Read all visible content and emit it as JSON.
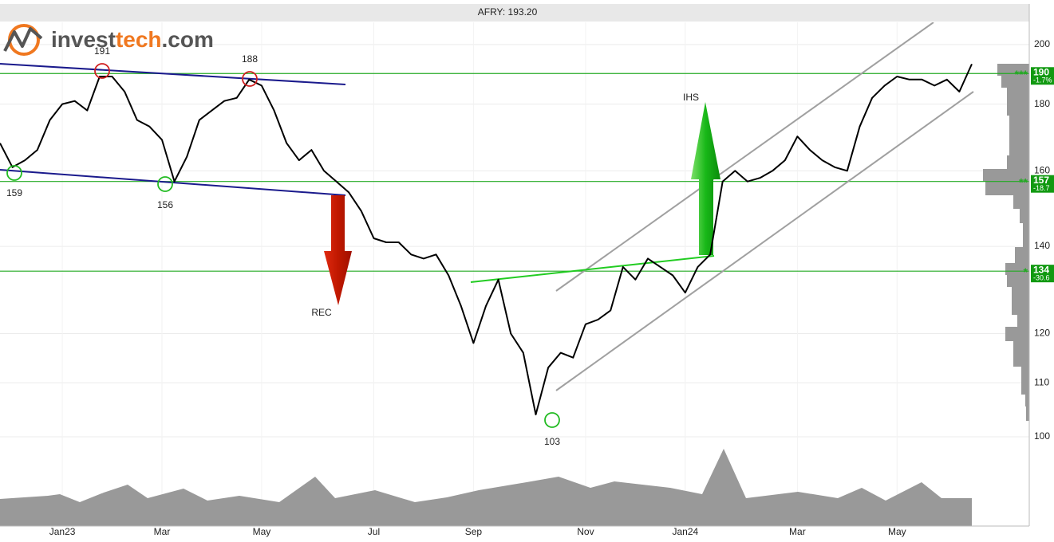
{
  "chart_data": {
    "type": "line",
    "title": "AFRY: 193.20",
    "logo": [
      "invest",
      "tech",
      ".com"
    ],
    "log_scale": true,
    "grid": true,
    "color": "#000000",
    "categories": [
      null,
      null,
      null,
      null,
      null,
      "Jan23",
      null,
      null,
      null,
      null,
      null,
      null,
      null,
      "Mar",
      null,
      null,
      null,
      null,
      null,
      null,
      null,
      "May",
      null,
      null,
      null,
      null,
      null,
      null,
      null,
      null,
      "Jul",
      null,
      null,
      null,
      null,
      null,
      null,
      null,
      "Sep",
      null,
      null,
      null,
      null,
      null,
      null,
      null,
      null,
      "Nov",
      null,
      null,
      null,
      null,
      null,
      null,
      null,
      "Jan24",
      null,
      null,
      null,
      null,
      null,
      null,
      null,
      null,
      "Mar",
      null,
      null,
      null,
      null,
      null,
      null,
      null,
      "May",
      null,
      null,
      null,
      null,
      null,
      null
    ],
    "values": [
      168,
      161,
      163,
      166,
      175,
      180,
      181,
      178,
      189,
      189,
      184,
      175,
      173,
      169,
      157,
      164,
      175,
      178,
      181,
      182,
      188,
      186,
      178,
      168,
      163,
      166,
      160,
      157,
      154,
      149,
      142,
      141,
      141,
      138,
      137,
      138,
      133,
      126,
      118,
      126,
      132,
      120,
      116,
      104,
      113,
      116,
      115,
      122,
      123,
      125,
      135,
      132,
      137,
      135,
      133,
      129,
      135,
      138,
      157,
      160,
      157,
      158,
      160,
      163,
      170,
      166,
      163,
      161,
      160,
      173,
      182,
      186,
      189,
      188,
      188,
      186,
      188,
      184,
      193.2
    ],
    "ylim": [
      85.4,
      208
    ],
    "yticks": [
      100,
      110,
      120,
      140,
      160,
      180,
      200
    ],
    "levels": [
      {
        "value": 190,
        "change": "-1.7%",
        "stars": "***"
      },
      {
        "value": 157,
        "change": "-18.7",
        "stars": "**"
      },
      {
        "value": 134,
        "change": "-30.6",
        "stars": "*"
      }
    ],
    "annotations": [
      "191",
      "188",
      "159",
      "156",
      "103",
      "REC",
      "IHS"
    ]
  }
}
